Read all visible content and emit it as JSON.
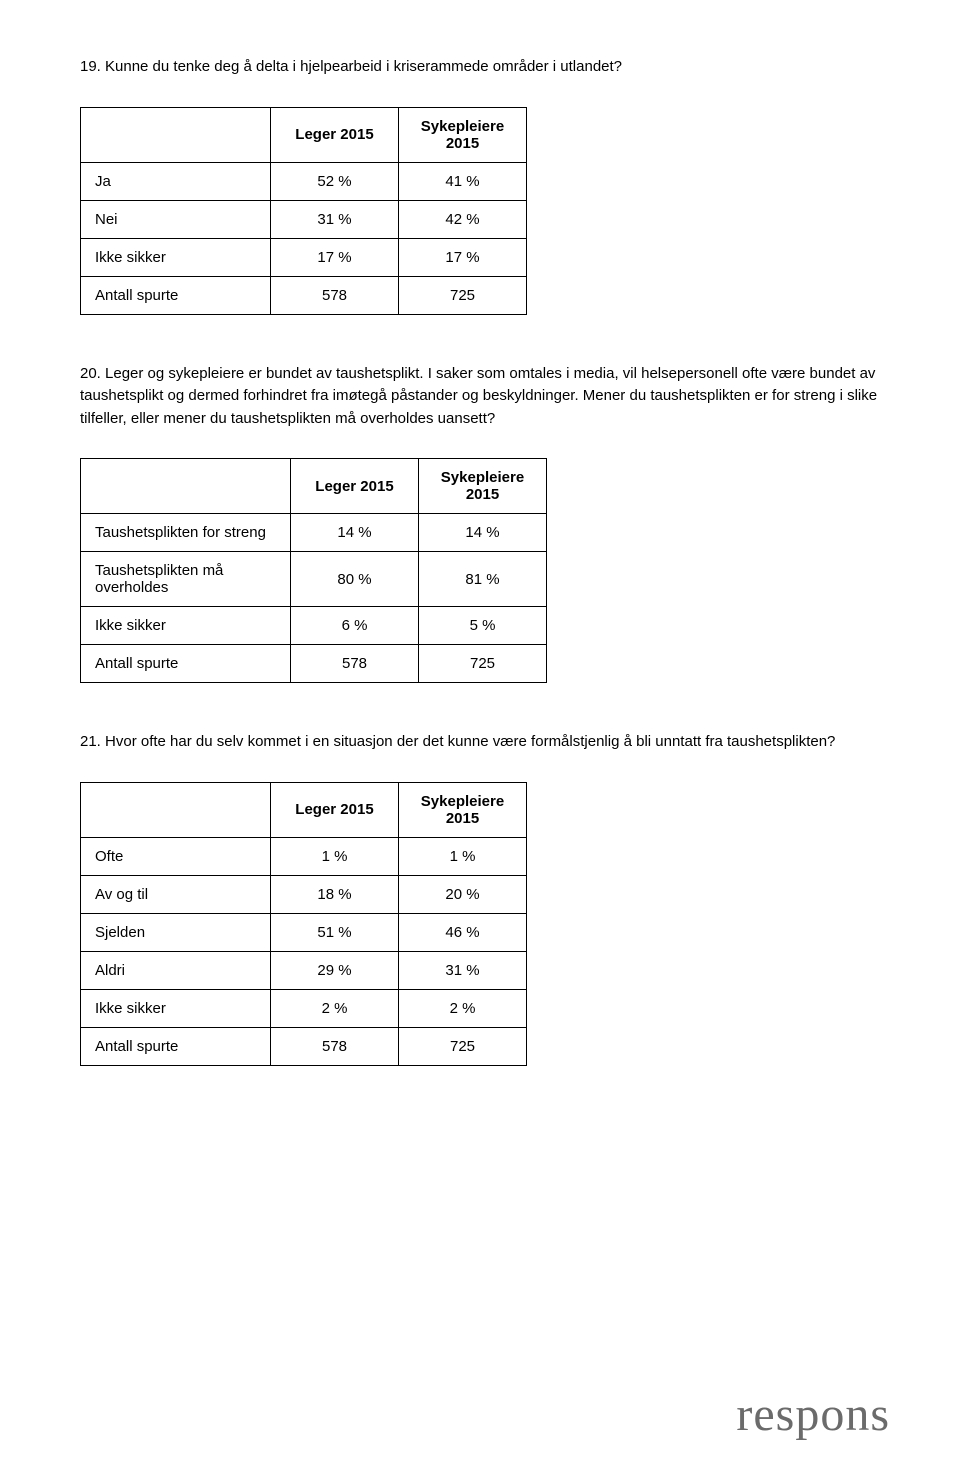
{
  "q19": {
    "text": "19. Kunne du tenke deg å delta i hjelpearbeid i kriserammede områder i utlandet?",
    "headers": [
      "Leger 2015",
      "Sykepleiere 2015"
    ],
    "rows": [
      {
        "label": "Ja",
        "v1": "52 %",
        "v2": "41 %"
      },
      {
        "label": "Nei",
        "v1": "31 %",
        "v2": "42 %"
      },
      {
        "label": "Ikke sikker",
        "v1": "17 %",
        "v2": "17 %"
      },
      {
        "label": "Antall spurte",
        "v1": "578",
        "v2": "725"
      }
    ]
  },
  "q20": {
    "text": "20. Leger og sykepleiere er bundet av taushetsplikt. I saker som omtales i media, vil helsepersonell ofte være bundet av taushetsplikt og dermed forhindret fra imøtegå påstander og beskyldninger. Mener du taushetsplikten er for streng i slike tilfeller, eller mener du taushetsplikten må overholdes uansett?",
    "headers": [
      "Leger 2015",
      "Sykepleiere 2015"
    ],
    "rows": [
      {
        "label": "Taushetsplikten for streng",
        "v1": "14 %",
        "v2": "14 %"
      },
      {
        "label": "Taushetsplikten må overholdes",
        "v1": "80 %",
        "v2": "81 %"
      },
      {
        "label": "Ikke sikker",
        "v1": "6 %",
        "v2": "5 %"
      },
      {
        "label": "Antall spurte",
        "v1": "578",
        "v2": "725"
      }
    ]
  },
  "q21": {
    "text": "21. Hvor ofte har du selv kommet i en situasjon der det kunne være formålstjenlig å bli unntatt fra taushetsplikten?",
    "headers": [
      "Leger 2015",
      "Sykepleiere 2015"
    ],
    "rows": [
      {
        "label": "Ofte",
        "v1": "1 %",
        "v2": "1 %"
      },
      {
        "label": "Av og til",
        "v1": "18 %",
        "v2": "20 %"
      },
      {
        "label": "Sjelden",
        "v1": "51 %",
        "v2": "46 %"
      },
      {
        "label": "Aldri",
        "v1": "29 %",
        "v2": "31 %"
      },
      {
        "label": "Ikke sikker",
        "v1": "2 %",
        "v2": "2 %"
      },
      {
        "label": "Antall spurte",
        "v1": "578",
        "v2": "725"
      }
    ]
  },
  "logo": "respons"
}
